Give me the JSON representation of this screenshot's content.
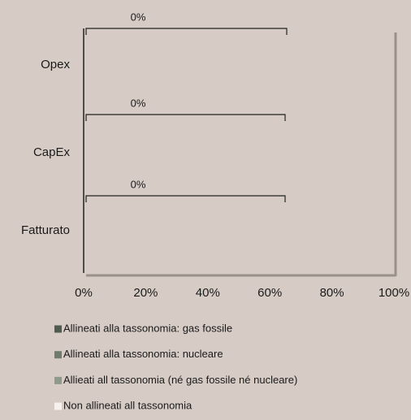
{
  "chart_data": {
    "type": "hbar_stacked",
    "categories": [
      "Opex",
      "CapEx",
      "Fatturato"
    ],
    "series": [
      {
        "name": "Allineati alla tassonomia: gas fossile",
        "color": "#4f5b4e",
        "values": [
          0,
          0,
          0
        ],
        "value_labels": [
          "0%",
          "0%",
          "0%"
        ]
      },
      {
        "name": "Allineati alla tassonomia: nucleare",
        "color": "#6f7b6c",
        "values": [
          0,
          0,
          0
        ]
      },
      {
        "name": "Allieati all tassonomia (né gas fossile né nucleare)",
        "color": "#8f9a8c",
        "values": [
          0,
          0,
          0
        ]
      },
      {
        "name": "Non allineati all tassonomia",
        "color": "#f4f1ee",
        "values": [
          0,
          0,
          0
        ]
      }
    ],
    "xlim": [
      0,
      100
    ],
    "xticks": [
      {
        "value": 0,
        "label": "0%"
      },
      {
        "value": 20,
        "label": "20%"
      },
      {
        "value": 40,
        "label": "40%"
      },
      {
        "value": 60,
        "label": "60%"
      },
      {
        "value": 80,
        "label": "80%"
      },
      {
        "value": 100,
        "label": "100%"
      }
    ]
  }
}
